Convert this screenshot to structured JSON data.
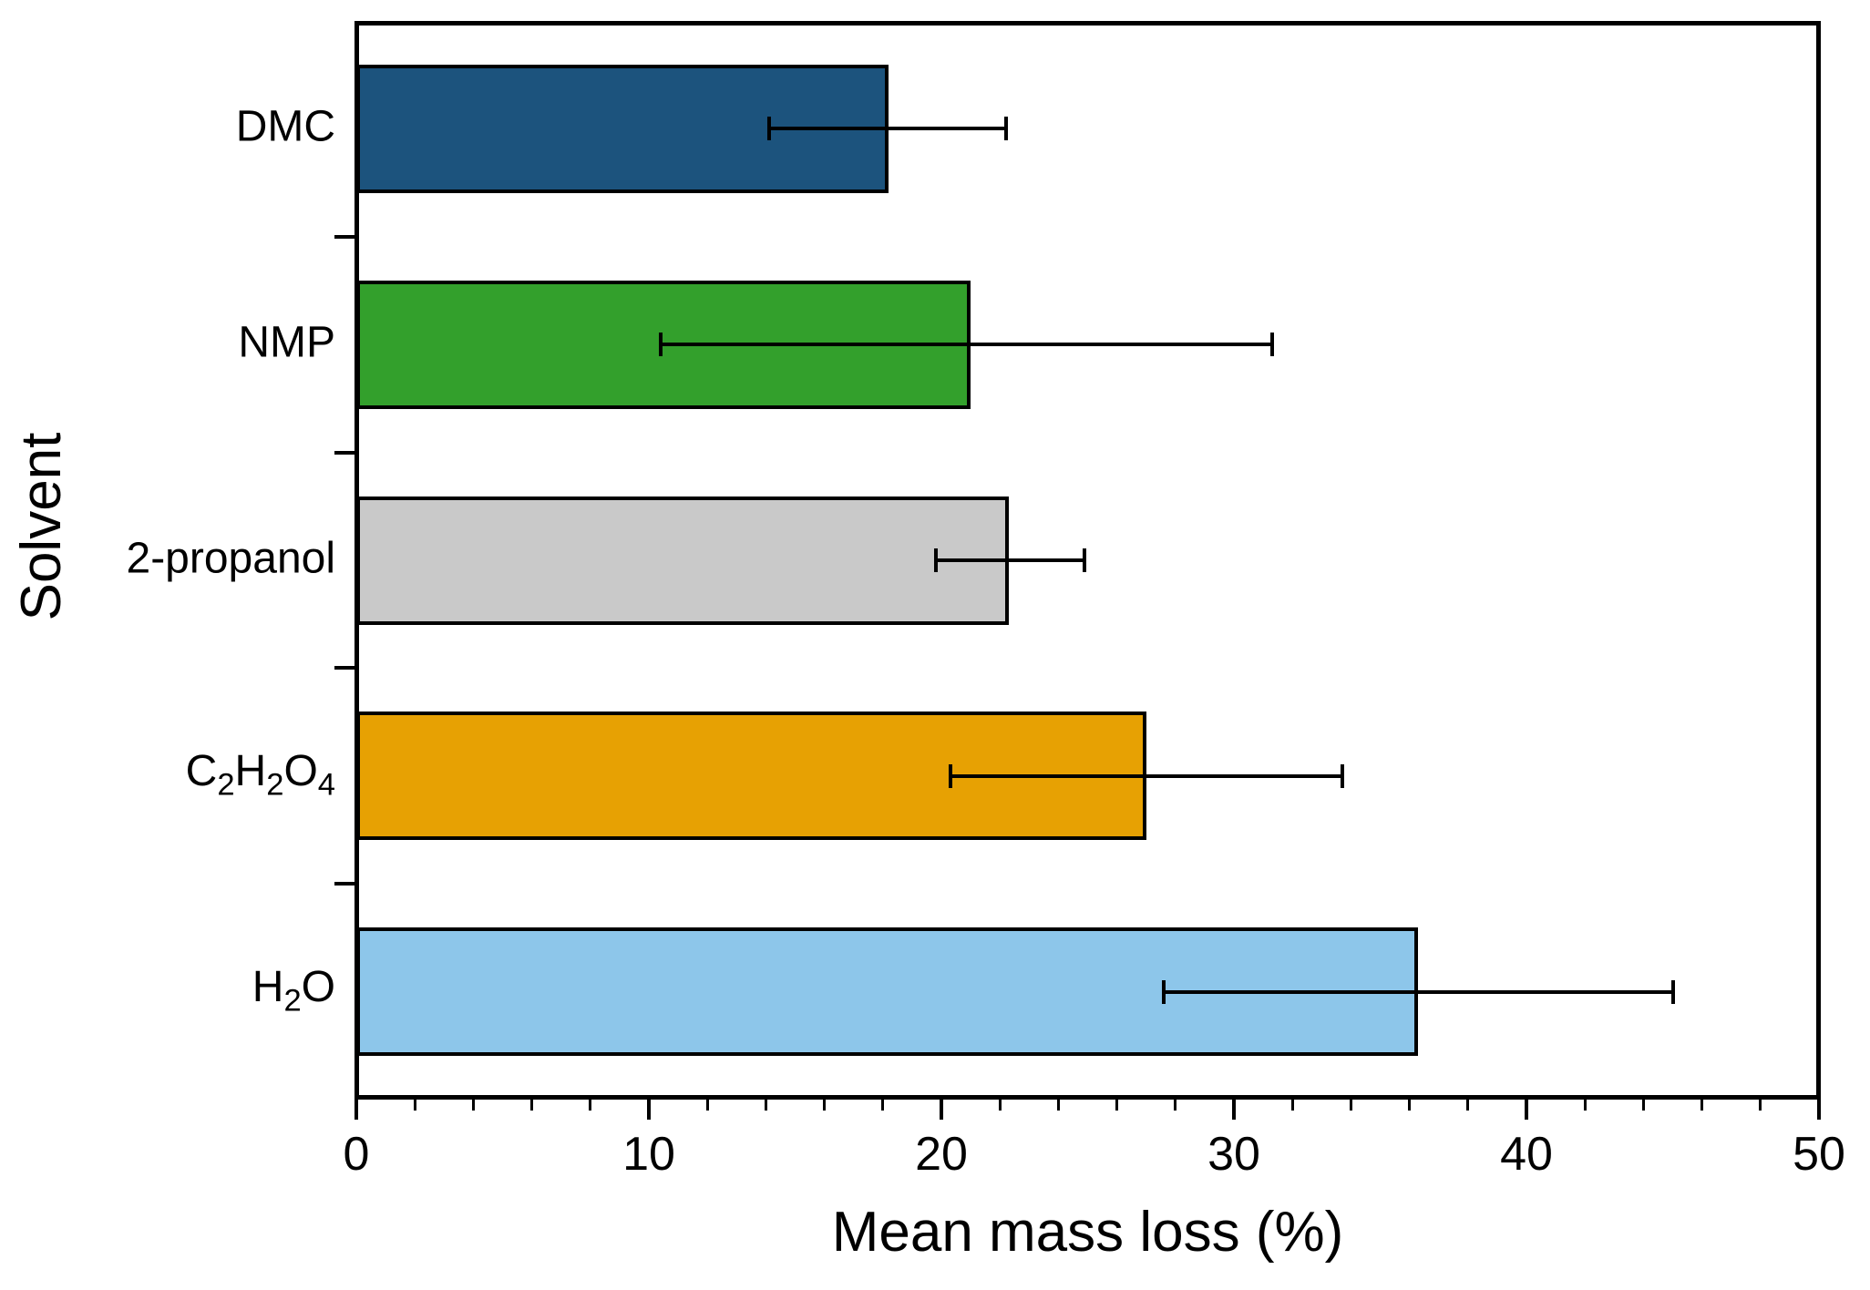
{
  "chart_data": {
    "type": "bar",
    "orientation": "horizontal",
    "title": "",
    "xlabel": "Mean mass loss (%)",
    "ylabel": "Solvent",
    "xlim": [
      0,
      50
    ],
    "x_major_ticks": [
      0,
      10,
      20,
      30,
      40,
      50
    ],
    "x_minor_tick_step": 2,
    "grid": false,
    "legend": null,
    "categories": [
      "DMC",
      "NMP",
      "2-propanol",
      "C2H2O4",
      "H2O"
    ],
    "values": [
      18.2,
      21.0,
      22.3,
      27.0,
      36.3
    ],
    "error_low": [
      14.1,
      10.4,
      19.8,
      20.3,
      27.6
    ],
    "error_high": [
      22.2,
      31.3,
      24.9,
      33.7,
      45.0
    ],
    "bar_colors": [
      "#1C537D",
      "#33A02C",
      "#C9C9C9",
      "#E7A103",
      "#8DC6EA"
    ],
    "bar_edge_color": "#000000",
    "axis_color": "#000000",
    "label_segments": [
      [
        [
          "DMC",
          false
        ]
      ],
      [
        [
          "NMP",
          false
        ]
      ],
      [
        [
          "2-propanol",
          false
        ]
      ],
      [
        [
          "C",
          false
        ],
        [
          "2",
          true
        ],
        [
          "H",
          false
        ],
        [
          "2",
          true
        ],
        [
          "O",
          false
        ],
        [
          "4",
          true
        ]
      ],
      [
        [
          "H",
          false
        ],
        [
          "2",
          true
        ],
        [
          "O",
          false
        ]
      ]
    ]
  }
}
